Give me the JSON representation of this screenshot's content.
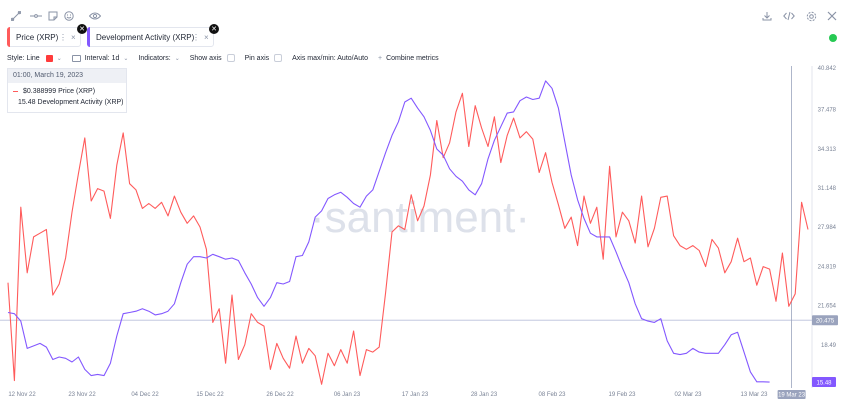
{
  "toolbar_icons": [
    "line-tool-icon",
    "horizontal-line-icon",
    "note-icon",
    "emoji-icon",
    "eye-icon"
  ],
  "top_right_icons": [
    "download-icon",
    "embed-code-icon",
    "settings-icon",
    "close-icon"
  ],
  "tabs": [
    {
      "label": "Price (XRP)",
      "color": "#ff5b5b"
    },
    {
      "label": "Development Activity (XRP)",
      "color": "#8358ff"
    }
  ],
  "options": {
    "style_label": "Style: Line",
    "interval_label": "Interval: 1d",
    "indicators_label": "Indicators:",
    "show_axis_label": "Show axis",
    "pin_axis_label": "Pin axis",
    "axis_maxmin_label": "Axis max/min: Auto/Auto",
    "combine_label": "Combine metrics"
  },
  "legend": {
    "date": "01:00, March 19, 2023",
    "entries": [
      {
        "value": "$0.388999",
        "name": "Price (XRP)",
        "color": "#ff5b5b"
      },
      {
        "value": "15.48",
        "name": "Development Activity (XRP)",
        "color": "#8358ff"
      }
    ]
  },
  "watermark": "·santiment·",
  "status_color": "#26c953",
  "chart_data": {
    "type": "line",
    "x_ticks": [
      "12 Nov 22",
      "23 Nov 22",
      "04 Dec 22",
      "15 Dec 22",
      "26 Dec 22",
      "06 Jan 23",
      "17 Jan 23",
      "28 Jan 23",
      "08 Feb 23",
      "19 Feb 23",
      "02 Mar 23",
      "13 Mar 23",
      "19 Mar 23"
    ],
    "y_ticks": [
      "40.842",
      "37.478",
      "34.313",
      "31.148",
      "27.984",
      "24.819",
      "21.654",
      "18.49",
      "15.48"
    ],
    "y_range": [
      15.0,
      40.842
    ],
    "highlight_labels": [
      "20.475",
      "15.48"
    ],
    "series": [
      {
        "name": "Price (XRP)",
        "color": "#ff5b5b",
        "values": [
          23.5,
          15.6,
          29.6,
          24.3,
          27.2,
          27.5,
          27.8,
          22.5,
          23.4,
          25.5,
          29.2,
          32.3,
          35.2,
          30.1,
          31.1,
          30.9,
          28.7,
          33.0,
          35.6,
          31.5,
          31.0,
          29.5,
          29.9,
          29.5,
          30.0,
          28.9,
          30.5,
          29.2,
          28.3,
          28.9,
          28.0,
          26.2,
          20.3,
          21.4,
          17.0,
          22.5,
          17.3,
          18.5,
          21.0,
          20.3,
          20.0,
          16.5,
          18.6,
          17.4,
          16.6,
          19.2,
          17.0,
          18.2,
          17.6,
          15.3,
          17.8,
          16.8,
          18.1,
          17.0,
          19.6,
          16.0,
          18.1,
          17.9,
          18.3,
          22.7,
          27.6,
          28.1,
          27.8,
          30.6,
          28.5,
          29.7,
          32.2,
          36.6,
          33.6,
          34.8,
          37.3,
          38.8,
          34.5,
          37.8,
          36.0,
          34.5,
          36.9,
          33.2,
          35.4,
          36.8,
          35.2,
          35.7,
          35.1,
          32.4,
          34.0,
          31.6,
          29.8,
          27.9,
          28.8,
          26.5,
          30.5,
          28.3,
          29.6,
          25.4,
          32.9,
          27.2,
          29.2,
          28.5,
          26.7,
          30.5,
          26.4,
          27.9,
          30.4,
          30.5,
          27.3,
          26.5,
          26.2,
          26.5,
          26.1,
          24.8,
          27.0,
          26.3,
          24.3,
          25.2,
          27.1,
          25.2,
          25.5,
          23.3,
          24.8,
          24.6,
          22.0,
          25.9,
          21.6,
          22.6,
          30.0,
          27.8
        ],
        "points_x": [
          0,
          1,
          2,
          3,
          4,
          5,
          6,
          7,
          8,
          9,
          10,
          11,
          12,
          13,
          14,
          15,
          16,
          17,
          18,
          19,
          20,
          21,
          22,
          23,
          24,
          25,
          26,
          27,
          28,
          29,
          30,
          31,
          32,
          33,
          34,
          35,
          36,
          37,
          38,
          39,
          40,
          41,
          42,
          43,
          44,
          45,
          46,
          47,
          48,
          49,
          50,
          51,
          52,
          53,
          54,
          55,
          56,
          57,
          58,
          59,
          60,
          61,
          62,
          63,
          64,
          65,
          66,
          67,
          68,
          69,
          70,
          71,
          72,
          73,
          74,
          75,
          76,
          77,
          78,
          79,
          80,
          81,
          82,
          83,
          84,
          85,
          86,
          87,
          88,
          89,
          90,
          91,
          92,
          93,
          94,
          95,
          96,
          97,
          98,
          99,
          100,
          101,
          102,
          103,
          104,
          105,
          106,
          107,
          108,
          109,
          110,
          111,
          112,
          113,
          114,
          115,
          116,
          117,
          118,
          119,
          120,
          121,
          122,
          123,
          124,
          125
        ]
      },
      {
        "name": "Development Activity (XRP)",
        "color": "#8358ff",
        "values": [
          21.1,
          21.0,
          20.4,
          18.2,
          18.4,
          18.6,
          18.3,
          17.3,
          17.5,
          17.4,
          17.1,
          17.5,
          16.5,
          16.0,
          16.1,
          16.0,
          17.0,
          19.2,
          21.0,
          21.1,
          21.2,
          21.4,
          21.2,
          20.9,
          21.0,
          21.2,
          21.8,
          23.5,
          25.0,
          25.6,
          25.6,
          25.5,
          25.8,
          25.6,
          25.4,
          25.5,
          25.3,
          24.3,
          23.4,
          22.3,
          21.6,
          22.3,
          23.5,
          23.4,
          23.6,
          25.6,
          25.7,
          26.8,
          28.8,
          29.3,
          30.3,
          30.6,
          30.8,
          30.4,
          29.9,
          29.6,
          30.5,
          31.0,
          32.5,
          34.0,
          35.4,
          36.5,
          38.1,
          38.4,
          37.6,
          36.9,
          35.8,
          34.3,
          33.8,
          32.7,
          32.1,
          31.7,
          31.0,
          30.6,
          31.5,
          33.5,
          35.0,
          36.1,
          37.2,
          37.3,
          38.2,
          38.5,
          38.3,
          38.4,
          39.8,
          39.2,
          37.6,
          34.9,
          32.2,
          30.2,
          28.7,
          27.5,
          27.2,
          27.2,
          27.2,
          26.0,
          24.7,
          23.5,
          21.8,
          20.6,
          20.4,
          20.3,
          20.6,
          18.8,
          17.8,
          17.7,
          17.8,
          18.2,
          17.9,
          17.8,
          17.8,
          17.8,
          18.5,
          19.3,
          19.5,
          17.9,
          16.3,
          15.5,
          15.5,
          15.48
        ],
        "points_x": [
          0,
          1,
          2,
          3,
          4,
          5,
          6,
          7,
          8,
          9,
          10,
          11,
          12,
          13,
          14,
          15,
          16,
          17,
          18,
          19,
          20,
          21,
          22,
          23,
          24,
          25,
          26,
          27,
          28,
          29,
          30,
          31,
          32,
          33,
          34,
          35,
          36,
          37,
          38,
          39,
          40,
          41,
          42,
          43,
          44,
          45,
          46,
          47,
          48,
          49,
          50,
          51,
          52,
          53,
          54,
          55,
          56,
          57,
          58,
          59,
          60,
          61,
          62,
          63,
          64,
          65,
          66,
          67,
          68,
          69,
          70,
          71,
          72,
          73,
          74,
          75,
          76,
          77,
          78,
          79,
          80,
          81,
          82,
          83,
          84,
          85,
          86,
          87,
          88,
          89,
          90,
          91,
          92,
          93,
          94,
          95,
          96,
          97,
          98,
          99,
          100,
          101,
          102,
          103,
          104,
          105,
          106,
          107,
          108,
          109,
          110,
          111,
          112,
          113,
          114,
          115,
          116,
          117,
          118,
          119
        ]
      }
    ]
  }
}
